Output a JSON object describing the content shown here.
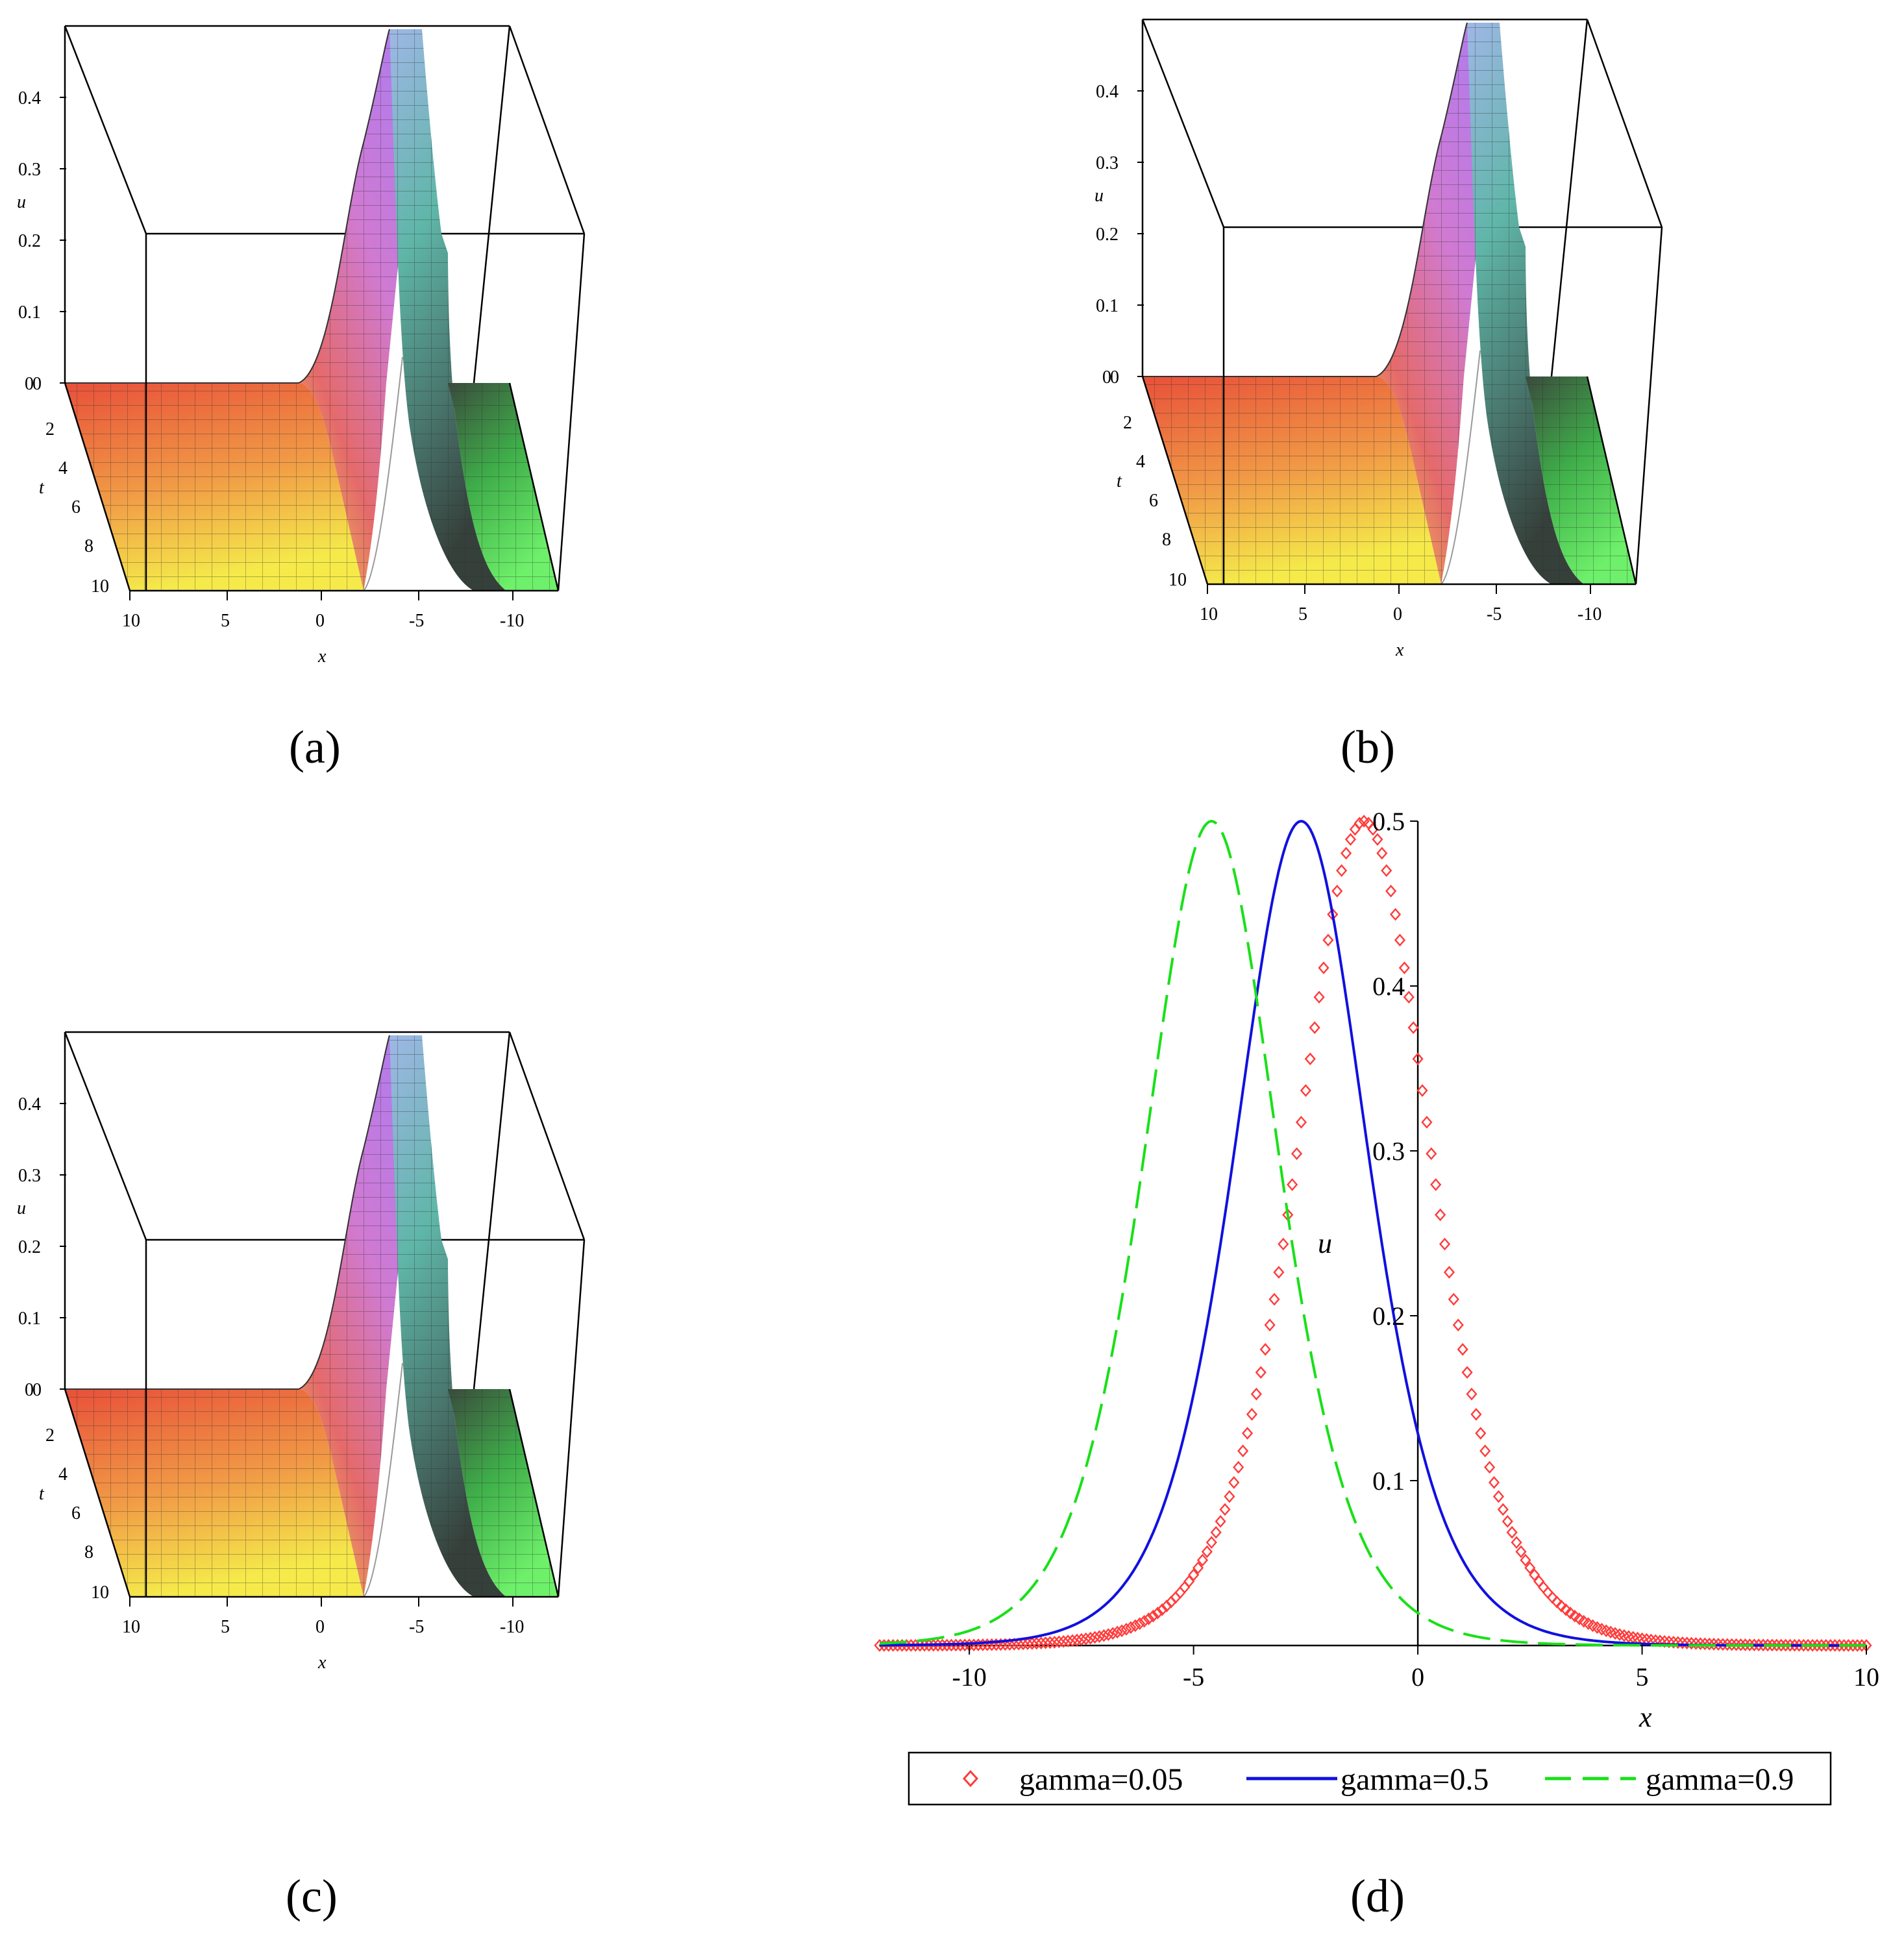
{
  "panels": {
    "a": "(a)",
    "b": "(b)",
    "c": "(c)",
    "d": "(d)"
  },
  "chart_data": [
    {
      "id": "a",
      "type": "surface3d",
      "xlabel": "x",
      "ylabel": "t",
      "zlabel": "u",
      "x_ticks": [
        "10",
        "5",
        "0",
        "-5",
        "-10"
      ],
      "t_ticks": [
        "0",
        "2",
        "4",
        "6",
        "8",
        "10"
      ],
      "u_ticks": [
        "0",
        "0.1",
        "0.2",
        "0.3",
        "0.4"
      ],
      "u_range": [
        0,
        0.5
      ],
      "colors": [
        "#e8503a",
        "#f5e64a",
        "#c27be0",
        "#4ee06a"
      ]
    },
    {
      "id": "b",
      "type": "surface3d",
      "xlabel": "x",
      "ylabel": "t",
      "zlabel": "u",
      "x_ticks": [
        "10",
        "5",
        "0",
        "-5",
        "-10"
      ],
      "t_ticks": [
        "0",
        "2",
        "4",
        "6",
        "8",
        "10"
      ],
      "u_ticks": [
        "0",
        "0.1",
        "0.2",
        "0.3",
        "0.4"
      ],
      "u_range": [
        0,
        0.5
      ],
      "colors": [
        "#e8503a",
        "#f5e64a",
        "#c27be0",
        "#4ee06a"
      ]
    },
    {
      "id": "c",
      "type": "surface3d",
      "xlabel": "x",
      "ylabel": "t",
      "zlabel": "u",
      "x_ticks": [
        "10",
        "5",
        "0",
        "-5",
        "-10"
      ],
      "t_ticks": [
        "0",
        "2",
        "4",
        "6",
        "8",
        "10"
      ],
      "u_ticks": [
        "0",
        "0.1",
        "0.2",
        "0.3",
        "0.4"
      ],
      "u_range": [
        0,
        0.5
      ],
      "colors": [
        "#e8503a",
        "#f5e64a",
        "#c27be0",
        "#4ee06a"
      ]
    },
    {
      "id": "d",
      "type": "line",
      "xlabel": "x",
      "ylabel": "u",
      "xlim": [
        -12,
        10
      ],
      "ylim": [
        0,
        0.5
      ],
      "x_ticks": [
        -10,
        -5,
        0,
        5,
        10
      ],
      "x_tick_labels": [
        "-10",
        "-5",
        "0",
        "5",
        "10"
      ],
      "y_ticks": [
        0.1,
        0.2,
        0.3,
        0.4,
        0.5
      ],
      "y_tick_labels": [
        "0.1",
        "0.2",
        "0.3",
        "0.4",
        "0.5"
      ],
      "series": [
        {
          "name": "gamma=0.05",
          "peak_x": -1.2,
          "peak_u": 0.5,
          "color": "#ff3b3b",
          "style": "diamond-markers"
        },
        {
          "name": "gamma=0.5",
          "peak_x": -2.6,
          "peak_u": 0.5,
          "color": "#1010e0",
          "style": "solid"
        },
        {
          "name": "gamma=0.9",
          "peak_x": -4.6,
          "peak_u": 0.5,
          "color": "#18e018",
          "style": "dashed"
        }
      ],
      "curve": "u = 0.5 * sech^2((x - peak_x)/2)"
    }
  ]
}
